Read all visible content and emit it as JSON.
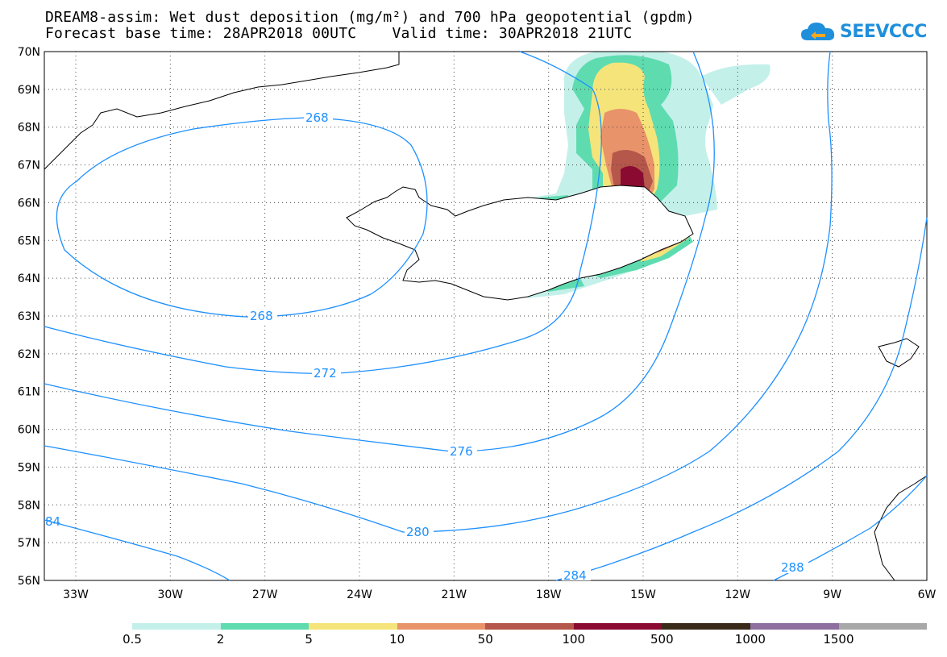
{
  "header": {
    "title_line1": "DREAM8-assim: Wet dust deposition (mg/m²) and 700 hPa geopotential (gpdm)",
    "title_line2": "Forecast base time: 28APR2018 00UTC    Valid time: 30APR2018 21UTC"
  },
  "logo": {
    "text": "SEEVCCC",
    "icon": "cloud-icon"
  },
  "map": {
    "lat_labels": [
      "70N",
      "69N",
      "68N",
      "67N",
      "66N",
      "65N",
      "64N",
      "63N",
      "62N",
      "61N",
      "60N",
      "59N",
      "58N",
      "57N",
      "56N"
    ],
    "lon_labels": [
      "33W",
      "30W",
      "27W",
      "24W",
      "21W",
      "18W",
      "15W",
      "12W",
      "9W",
      "6W"
    ],
    "contour_labels": [
      "268",
      "268",
      "272",
      "276",
      "280",
      "284",
      "288",
      "84"
    ],
    "contour_color": "#1e90ff",
    "land_color": "#ffffff",
    "coast_color": "#000000"
  },
  "colorbar": {
    "colors": [
      "#c4f0ea",
      "#5fdbb0",
      "#f5e47a",
      "#e9936a",
      "#b5574a",
      "#8b0a32",
      "#3a2a1a",
      "#8e6fa0",
      "#a8a8a8"
    ],
    "labels": [
      "0.5",
      "2",
      "5",
      "10",
      "50",
      "100",
      "500",
      "1000",
      "1500"
    ]
  }
}
